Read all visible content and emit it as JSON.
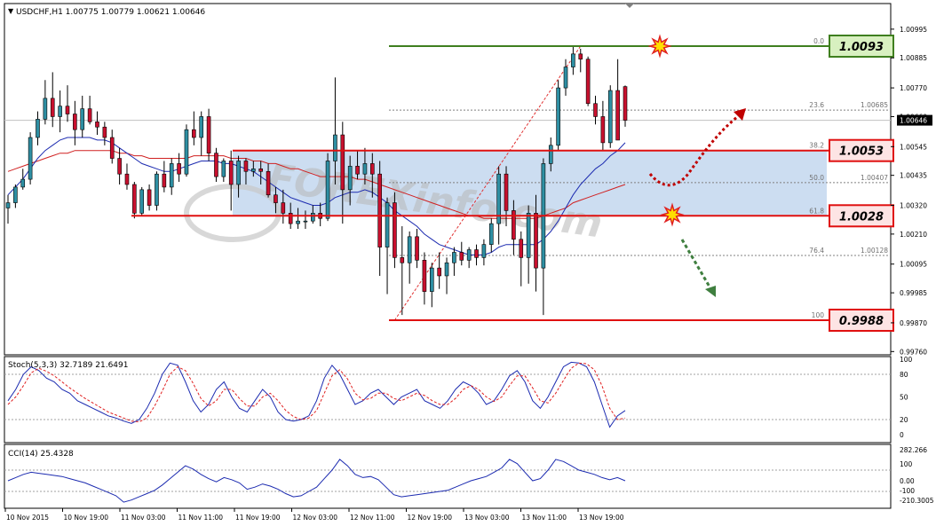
{
  "chart_data": {
    "type": "candlestick",
    "symbol_header": "USDCHF,H1  1.00775 1.00779 1.00621 1.00646",
    "ylim": [
      0.9976,
      1.0104
    ],
    "price_ticks": [
      "1.00995",
      "1.00885",
      "1.00770",
      "1.00660",
      "1.00545",
      "1.00435",
      "1.00320",
      "1.00210",
      "1.00095",
      "0.99985",
      "0.99870",
      "0.99760"
    ],
    "price_tick_values": [
      1.00995,
      1.00885,
      1.0077,
      1.0066,
      1.00545,
      1.00435,
      1.0032,
      1.0021,
      1.00095,
      0.99985,
      0.9987,
      0.9976
    ],
    "current_price": "1.00646",
    "time_labels": [
      "10 Nov 2015",
      "10 Nov 19:00",
      "11 Nov 03:00",
      "11 Nov 11:00",
      "11 Nov 19:00",
      "12 Nov 03:00",
      "12 Nov 11:00",
      "12 Nov 19:00",
      "13 Nov 03:00",
      "13 Nov 11:00",
      "13 Nov 19:00"
    ],
    "candles": [
      {
        "o": 1.0031,
        "h": 1.0036,
        "l": 1.0025,
        "c": 1.0033
      },
      {
        "o": 1.0033,
        "h": 1.004,
        "l": 1.0031,
        "c": 1.0039
      },
      {
        "o": 1.0039,
        "h": 1.0046,
        "l": 1.0038,
        "c": 1.0042
      },
      {
        "o": 1.0042,
        "h": 1.006,
        "l": 1.004,
        "c": 1.0058
      },
      {
        "o": 1.0058,
        "h": 1.0068,
        "l": 1.0055,
        "c": 1.0065
      },
      {
        "o": 1.0065,
        "h": 1.008,
        "l": 1.0063,
        "c": 1.0073
      },
      {
        "o": 1.0073,
        "h": 1.0083,
        "l": 1.0062,
        "c": 1.0066
      },
      {
        "o": 1.0066,
        "h": 1.0076,
        "l": 1.006,
        "c": 1.007
      },
      {
        "o": 1.007,
        "h": 1.0078,
        "l": 1.0064,
        "c": 1.0067
      },
      {
        "o": 1.0067,
        "h": 1.0072,
        "l": 1.0055,
        "c": 1.0061
      },
      {
        "o": 1.0061,
        "h": 1.0074,
        "l": 1.0058,
        "c": 1.0069
      },
      {
        "o": 1.0069,
        "h": 1.0074,
        "l": 1.0063,
        "c": 1.0064
      },
      {
        "o": 1.0064,
        "h": 1.0068,
        "l": 1.0059,
        "c": 1.0062
      },
      {
        "o": 1.0062,
        "h": 1.0064,
        "l": 1.0055,
        "c": 1.0058
      },
      {
        "o": 1.0058,
        "h": 1.0061,
        "l": 1.0048,
        "c": 1.005
      },
      {
        "o": 1.005,
        "h": 1.0054,
        "l": 1.004,
        "c": 1.0044
      },
      {
        "o": 1.0044,
        "h": 1.0048,
        "l": 1.0038,
        "c": 1.004
      },
      {
        "o": 1.004,
        "h": 1.0041,
        "l": 1.0027,
        "c": 1.0029
      },
      {
        "o": 1.0029,
        "h": 1.0039,
        "l": 1.0028,
        "c": 1.0038
      },
      {
        "o": 1.0038,
        "h": 1.004,
        "l": 1.003,
        "c": 1.0032
      },
      {
        "o": 1.0032,
        "h": 1.0045,
        "l": 1.003,
        "c": 1.0044
      },
      {
        "o": 1.0044,
        "h": 1.0049,
        "l": 1.0037,
        "c": 1.0039
      },
      {
        "o": 1.0039,
        "h": 1.005,
        "l": 1.0036,
        "c": 1.0048
      },
      {
        "o": 1.0048,
        "h": 1.0052,
        "l": 1.0041,
        "c": 1.0044
      },
      {
        "o": 1.0044,
        "h": 1.0063,
        "l": 1.0043,
        "c": 1.0061
      },
      {
        "o": 1.0061,
        "h": 1.0068,
        "l": 1.0055,
        "c": 1.0058
      },
      {
        "o": 1.0058,
        "h": 1.0068,
        "l": 1.0051,
        "c": 1.0066
      },
      {
        "o": 1.0066,
        "h": 1.0069,
        "l": 1.0049,
        "c": 1.0052
      },
      {
        "o": 1.0052,
        "h": 1.0054,
        "l": 1.0041,
        "c": 1.0043
      },
      {
        "o": 1.0043,
        "h": 1.005,
        "l": 1.0041,
        "c": 1.0049
      },
      {
        "o": 1.0049,
        "h": 1.0053,
        "l": 1.003,
        "c": 1.004
      },
      {
        "o": 1.004,
        "h": 1.0051,
        "l": 1.0035,
        "c": 1.0049
      },
      {
        "o": 1.0049,
        "h": 1.005,
        "l": 1.004,
        "c": 1.0045
      },
      {
        "o": 1.0045,
        "h": 1.0049,
        "l": 1.0043,
        "c": 1.0046
      },
      {
        "o": 1.0046,
        "h": 1.0049,
        "l": 1.004,
        "c": 1.0045
      },
      {
        "o": 1.0045,
        "h": 1.0048,
        "l": 1.0035,
        "c": 1.0036
      },
      {
        "o": 1.0036,
        "h": 1.0039,
        "l": 1.0029,
        "c": 1.0033
      },
      {
        "o": 1.0033,
        "h": 1.0038,
        "l": 1.0025,
        "c": 1.0029
      },
      {
        "o": 1.0029,
        "h": 1.0033,
        "l": 1.0023,
        "c": 1.0025
      },
      {
        "o": 1.0025,
        "h": 1.0031,
        "l": 1.0023,
        "c": 1.0026
      },
      {
        "o": 1.0026,
        "h": 1.003,
        "l": 1.0023,
        "c": 1.0026
      },
      {
        "o": 1.0026,
        "h": 1.0032,
        "l": 1.0025,
        "c": 1.0029
      },
      {
        "o": 1.0029,
        "h": 1.0033,
        "l": 1.0024,
        "c": 1.0027
      },
      {
        "o": 1.0027,
        "h": 1.0052,
        "l": 1.0026,
        "c": 1.0049
      },
      {
        "o": 1.0049,
        "h": 1.0081,
        "l": 1.004,
        "c": 1.0059
      },
      {
        "o": 1.0059,
        "h": 1.0064,
        "l": 1.0025,
        "c": 1.0038
      },
      {
        "o": 1.0038,
        "h": 1.0051,
        "l": 1.0032,
        "c": 1.0047
      },
      {
        "o": 1.0047,
        "h": 1.0053,
        "l": 1.0042,
        "c": 1.0044
      },
      {
        "o": 1.0044,
        "h": 1.0054,
        "l": 1.004,
        "c": 1.0048
      },
      {
        "o": 1.0048,
        "h": 1.0052,
        "l": 1.0035,
        "c": 1.0044
      },
      {
        "o": 1.0044,
        "h": 1.0049,
        "l": 1.0005,
        "c": 1.0016
      },
      {
        "o": 1.0016,
        "h": 1.0035,
        "l": 0.9998,
        "c": 1.0033
      },
      {
        "o": 1.0033,
        "h": 1.0037,
        "l": 1.0008,
        "c": 1.0012
      },
      {
        "o": 1.0012,
        "h": 1.0024,
        "l": 0.999,
        "c": 1.001
      },
      {
        "o": 1.001,
        "h": 1.0022,
        "l": 1.0002,
        "c": 1.002
      },
      {
        "o": 1.002,
        "h": 1.0023,
        "l": 1.0008,
        "c": 1.0011
      },
      {
        "o": 1.0011,
        "h": 1.0014,
        "l": 0.9994,
        "c": 0.9999
      },
      {
        "o": 0.9999,
        "h": 1.001,
        "l": 0.9993,
        "c": 1.0008
      },
      {
        "o": 1.0008,
        "h": 1.0014,
        "l": 1.0,
        "c": 1.0005
      },
      {
        "o": 1.0005,
        "h": 1.0012,
        "l": 0.9998,
        "c": 1.001
      },
      {
        "o": 1.001,
        "h": 1.0016,
        "l": 1.0005,
        "c": 1.0014
      },
      {
        "o": 1.0014,
        "h": 1.0018,
        "l": 1.0009,
        "c": 1.0011
      },
      {
        "o": 1.0011,
        "h": 1.0016,
        "l": 1.0008,
        "c": 1.0015
      },
      {
        "o": 1.0015,
        "h": 1.0017,
        "l": 1.0009,
        "c": 1.0012
      },
      {
        "o": 1.0012,
        "h": 1.0019,
        "l": 1.0009,
        "c": 1.0017
      },
      {
        "o": 1.0017,
        "h": 1.0027,
        "l": 1.0014,
        "c": 1.0025
      },
      {
        "o": 1.0025,
        "h": 1.0047,
        "l": 1.0017,
        "c": 1.0044
      },
      {
        "o": 1.0044,
        "h": 1.0047,
        "l": 1.0024,
        "c": 1.003
      },
      {
        "o": 1.003,
        "h": 1.0034,
        "l": 1.0013,
        "c": 1.0019
      },
      {
        "o": 1.0019,
        "h": 1.0022,
        "l": 1.0001,
        "c": 1.0012
      },
      {
        "o": 1.0012,
        "h": 1.0032,
        "l": 1.0002,
        "c": 1.0029
      },
      {
        "o": 1.0029,
        "h": 1.0036,
        "l": 0.9999,
        "c": 1.0008
      },
      {
        "o": 1.0008,
        "h": 1.005,
        "l": 0.999,
        "c": 1.0048
      },
      {
        "o": 1.0048,
        "h": 1.0058,
        "l": 1.0045,
        "c": 1.0055
      },
      {
        "o": 1.0055,
        "h": 1.008,
        "l": 1.0053,
        "c": 1.0077
      },
      {
        "o": 1.0077,
        "h": 1.0088,
        "l": 1.0074,
        "c": 1.0085
      },
      {
        "o": 1.0085,
        "h": 1.0093,
        "l": 1.0082,
        "c": 1.009
      },
      {
        "o": 1.009,
        "h": 1.0092,
        "l": 1.0083,
        "c": 1.0088
      },
      {
        "o": 1.0088,
        "h": 1.0089,
        "l": 1.007,
        "c": 1.0071
      },
      {
        "o": 1.0071,
        "h": 1.0074,
        "l": 1.0063,
        "c": 1.0066
      },
      {
        "o": 1.0066,
        "h": 1.0072,
        "l": 1.0053,
        "c": 1.0056
      },
      {
        "o": 1.0056,
        "h": 1.0078,
        "l": 1.0054,
        "c": 1.0076
      },
      {
        "o": 1.0076,
        "h": 1.0088,
        "l": 1.0058,
        "c": 1.0057
      },
      {
        "o": 1.00775,
        "h": 1.00779,
        "l": 1.00621,
        "c": 1.00646
      }
    ],
    "ma_blue": [
      1.0036,
      1.0039,
      1.0042,
      1.0046,
      1.005,
      1.0053,
      1.0055,
      1.0057,
      1.0058,
      1.0058,
      1.0058,
      1.0058,
      1.0057,
      1.0057,
      1.0056,
      1.0054,
      1.0052,
      1.005,
      1.0048,
      1.0047,
      1.0046,
      1.0045,
      1.0045,
      1.0046,
      1.0047,
      1.0048,
      1.0049,
      1.0049,
      1.0049,
      1.0048,
      1.0048,
      1.0047,
      1.0046,
      1.0045,
      1.0043,
      1.0041,
      1.0039,
      1.0037,
      1.0035,
      1.0034,
      1.0033,
      1.0032,
      1.0032,
      1.0033,
      1.0035,
      1.0036,
      1.0037,
      1.0037,
      1.0038,
      1.0037,
      1.0035,
      1.0033,
      1.003,
      1.0028,
      1.0026,
      1.0024,
      1.0021,
      1.0019,
      1.0017,
      1.0016,
      1.0015,
      1.0014,
      1.0013,
      1.0013,
      1.0013,
      1.0014,
      1.0016,
      1.0017,
      1.0017,
      1.0017,
      1.0017,
      1.0017,
      1.0019,
      1.0022,
      1.0026,
      1.0031,
      1.0036,
      1.004,
      1.0043,
      1.0046,
      1.0048,
      1.0051,
      1.0053,
      1.0056
    ],
    "ma_red": [
      1.0045,
      1.0046,
      1.0047,
      1.0048,
      1.0049,
      1.005,
      1.0051,
      1.0052,
      1.0052,
      1.0053,
      1.0053,
      1.0053,
      1.0053,
      1.0053,
      1.0053,
      1.0052,
      1.0052,
      1.0051,
      1.0051,
      1.005,
      1.005,
      1.005,
      1.005,
      1.005,
      1.005,
      1.0051,
      1.0051,
      1.0051,
      1.0051,
      1.0051,
      1.005,
      1.005,
      1.005,
      1.0049,
      1.0049,
      1.0048,
      1.0048,
      1.0047,
      1.0046,
      1.0046,
      1.0045,
      1.0044,
      1.0043,
      1.0043,
      1.0043,
      1.0043,
      1.0043,
      1.0042,
      1.0042,
      1.0041,
      1.004,
      1.0039,
      1.0038,
      1.0037,
      1.0036,
      1.0035,
      1.0034,
      1.0033,
      1.0032,
      1.0031,
      1.003,
      1.0029,
      1.0028,
      1.0028,
      1.0027,
      1.0027,
      1.0027,
      1.0027,
      1.0027,
      1.0027,
      1.0027,
      1.0027,
      1.0028,
      1.0029,
      1.003,
      1.0031,
      1.0033,
      1.0034,
      1.0035,
      1.0036,
      1.0037,
      1.0038,
      1.0039,
      1.004
    ],
    "levels": [
      {
        "value": 1.0093,
        "label": "1.0093",
        "kind": "target-high"
      },
      {
        "value": 1.0053,
        "label": "1.0053",
        "kind": "resistance"
      },
      {
        "value": 1.0028,
        "label": "1.0028",
        "kind": "support"
      },
      {
        "value": 0.9988,
        "label": "0.9988",
        "kind": "low"
      }
    ],
    "fibonacci": [
      {
        "pct": "0.0",
        "value": 1.0093,
        "price": ""
      },
      {
        "pct": "23.6",
        "value": 1.00685,
        "price": "1.00685"
      },
      {
        "pct": "38.2",
        "value": 1.0053,
        "price": ""
      },
      {
        "pct": "50.0",
        "value": 1.00407,
        "price": "1.00407"
      },
      {
        "pct": "61.8",
        "value": 1.0028,
        "price": ""
      },
      {
        "pct": "76.4",
        "value": 1.00128,
        "price": "1.00128"
      },
      {
        "pct": "100",
        "value": 0.9988,
        "price": ""
      }
    ],
    "zone": {
      "from": 1.0028,
      "to": 1.0053,
      "color": "#c6d9f0"
    },
    "watermark": "FOREXinfo.com",
    "stoch": {
      "label": "Stoch(5,3,3) 32.7189 21.6491",
      "ticks": [
        "100",
        "80",
        "50",
        "20",
        "0"
      ],
      "tick_values": [
        100,
        80,
        50,
        20,
        0
      ],
      "main": [
        45,
        60,
        80,
        90,
        85,
        75,
        70,
        60,
        55,
        45,
        40,
        35,
        30,
        25,
        22,
        18,
        15,
        20,
        35,
        55,
        80,
        95,
        92,
        70,
        45,
        30,
        40,
        60,
        70,
        50,
        35,
        30,
        45,
        60,
        50,
        30,
        20,
        18,
        20,
        25,
        45,
        75,
        92,
        80,
        60,
        40,
        45,
        55,
        60,
        50,
        40,
        50,
        55,
        60,
        45,
        40,
        35,
        45,
        60,
        70,
        65,
        55,
        40,
        45,
        60,
        78,
        85,
        70,
        45,
        35,
        50,
        70,
        90,
        96,
        95,
        90,
        70,
        40,
        10,
        25,
        32
      ],
      "signal": [
        40,
        50,
        65,
        82,
        88,
        84,
        78,
        70,
        62,
        55,
        48,
        42,
        36,
        30,
        26,
        22,
        18,
        17,
        22,
        38,
        58,
        80,
        90,
        85,
        68,
        48,
        38,
        45,
        60,
        60,
        48,
        38,
        38,
        50,
        55,
        45,
        32,
        24,
        20,
        22,
        32,
        55,
        78,
        86,
        74,
        55,
        46,
        48,
        55,
        55,
        48,
        45,
        50,
        55,
        52,
        45,
        40,
        40,
        48,
        60,
        65,
        60,
        50,
        44,
        50,
        65,
        78,
        78,
        62,
        45,
        42,
        55,
        72,
        88,
        95,
        94,
        86,
        65,
        35,
        20,
        22
      ]
    },
    "cci": {
      "label": "CCI(14) 25.4328",
      "ticks": [
        "282.266",
        "100",
        "0.00",
        "-100",
        "-210.3005"
      ],
      "tick_values": [
        282.266,
        100,
        0,
        -100,
        -210.3005
      ],
      "values": [
        0,
        30,
        60,
        80,
        70,
        60,
        50,
        40,
        20,
        0,
        -20,
        -50,
        -80,
        -110,
        -140,
        -200,
        -180,
        -150,
        -120,
        -90,
        -40,
        20,
        80,
        140,
        110,
        60,
        20,
        -10,
        30,
        10,
        -20,
        -80,
        -60,
        -30,
        -50,
        -80,
        -120,
        -150,
        -140,
        -100,
        -60,
        20,
        100,
        200,
        140,
        60,
        30,
        40,
        10,
        -60,
        -130,
        -150,
        -140,
        -130,
        -120,
        -110,
        -100,
        -90,
        -60,
        -30,
        0,
        20,
        40,
        80,
        120,
        200,
        160,
        80,
        0,
        20,
        100,
        200,
        180,
        140,
        100,
        80,
        60,
        30,
        10,
        30,
        0
      ]
    },
    "annotations": [
      {
        "kind": "arrow-up",
        "color": "#c00000"
      },
      {
        "kind": "arrow-down",
        "color": "#3f7f3f"
      }
    ]
  }
}
